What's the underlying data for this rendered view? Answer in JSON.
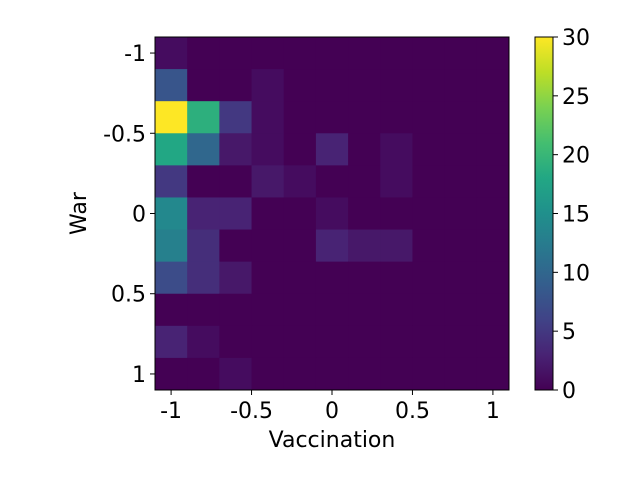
{
  "chart_data": {
    "type": "heatmap",
    "title": "",
    "xlabel": "Vaccination",
    "ylabel": "War",
    "xlim": [
      -1.1,
      1.1
    ],
    "ylim": [
      1.1,
      -1.1
    ],
    "y_inverted": true,
    "x_bin_edges": [
      -1.1,
      -0.9,
      -0.7,
      -0.5,
      -0.3,
      -0.1,
      0.1,
      0.3,
      0.5,
      0.7,
      0.9,
      1.1
    ],
    "y_bin_edges": [
      -1.1,
      -0.9,
      -0.7,
      -0.5,
      -0.3,
      -0.1,
      0.1,
      0.3,
      0.5,
      0.7,
      0.9,
      1.1
    ],
    "counts": [
      [
        1,
        0,
        0,
        0,
        0,
        0,
        0,
        0,
        0,
        0,
        0
      ],
      [
        8,
        0,
        0,
        1,
        0,
        0,
        0,
        0,
        0,
        0,
        0
      ],
      [
        30,
        19,
        5,
        1,
        0,
        0,
        0,
        0,
        0,
        0,
        0
      ],
      [
        18,
        10,
        2,
        1,
        0,
        3,
        0,
        1,
        0,
        0,
        0
      ],
      [
        5,
        0,
        0,
        2,
        1,
        0,
        0,
        1,
        0,
        0,
        0
      ],
      [
        14,
        3,
        3,
        0,
        0,
        1,
        0,
        0,
        0,
        0,
        0
      ],
      [
        13,
        4,
        0,
        0,
        0,
        3,
        2,
        2,
        0,
        0,
        0
      ],
      [
        7,
        4,
        2,
        0,
        0,
        0,
        0,
        0,
        0,
        0,
        0
      ],
      [
        0,
        0,
        0,
        0,
        0,
        0,
        0,
        0,
        0,
        0,
        0
      ],
      [
        3,
        1,
        0,
        0,
        0,
        0,
        0,
        0,
        0,
        0,
        0
      ],
      [
        0,
        0,
        1,
        0,
        0,
        0,
        0,
        0,
        0,
        0,
        0
      ]
    ],
    "x_ticks": [
      -1,
      -0.5,
      0,
      0.5,
      1
    ],
    "x_tick_labels": [
      "-1",
      "-0.5",
      "0",
      "0.5",
      "1"
    ],
    "y_ticks": [
      -1,
      -0.5,
      0,
      0.5,
      1
    ],
    "y_tick_labels": [
      "-1",
      "-0.5",
      "0",
      "0.5",
      "1"
    ],
    "colorbar": {
      "colormap": "viridis",
      "range": [
        0,
        30
      ],
      "ticks": [
        0,
        5,
        10,
        15,
        20,
        25,
        30
      ],
      "tick_labels": [
        "0",
        "5",
        "10",
        "15",
        "20",
        "25",
        "30"
      ]
    },
    "grid": false
  }
}
